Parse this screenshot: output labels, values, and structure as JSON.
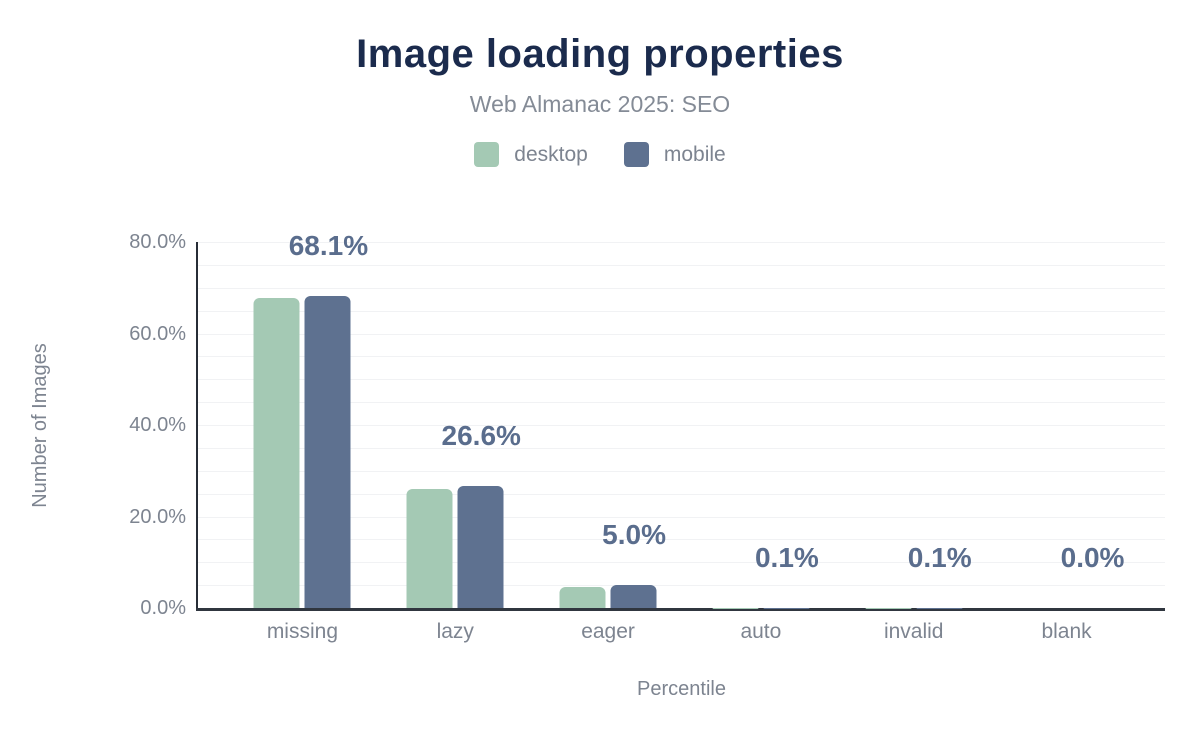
{
  "chart_data": {
    "type": "bar",
    "title": "Image loading properties",
    "subtitle": "Web Almanac 2025: SEO",
    "xlabel": "Percentile",
    "ylabel": "Number of Images",
    "categories": [
      "missing",
      "lazy",
      "eager",
      "auto",
      "invalid",
      "blank"
    ],
    "series": [
      {
        "name": "desktop",
        "color": "#a4c9b4",
        "values": [
          67.7,
          26.0,
          4.6,
          0.1,
          0.1,
          0.0
        ]
      },
      {
        "name": "mobile",
        "color": "#5e7190",
        "values": [
          68.1,
          26.6,
          5.0,
          0.1,
          0.1,
          0.0
        ]
      }
    ],
    "data_labels": [
      "68.1%",
      "26.6%",
      "5.0%",
      "0.1%",
      "0.1%",
      "0.0%"
    ],
    "data_label_series": "mobile",
    "y_ticks": [
      {
        "label": "0.0%",
        "value": 0
      },
      {
        "label": "20.0%",
        "value": 20
      },
      {
        "label": "40.0%",
        "value": 40
      },
      {
        "label": "60.0%",
        "value": 60
      },
      {
        "label": "80.0%",
        "value": 80
      }
    ],
    "ylim": [
      0,
      80
    ],
    "minor_grid_step": 5,
    "grid": "on",
    "legend_position": "top",
    "colors": {
      "title": "#1b2b4d",
      "subtitle": "#848b96",
      "axis_text": "#7d8490",
      "data_label": "#5a6d8d",
      "axis_line": "#272d36",
      "gridline": "#f1f2f4"
    }
  }
}
